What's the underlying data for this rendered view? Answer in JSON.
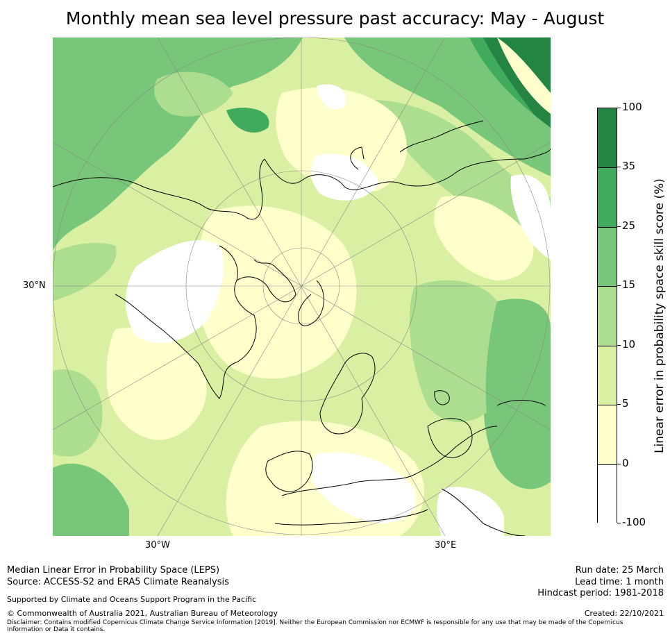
{
  "title": "Monthly mean sea level pressure past accuracy: May - August",
  "map": {
    "projection": "north polar stereographic",
    "lat_label": "30°N",
    "lon_labels": {
      "west": "30°W",
      "east": "30°E"
    }
  },
  "colorbar": {
    "label": "Linear error in probability space skill score (%)",
    "ticks": [
      "100",
      "35",
      "25",
      "15",
      "10",
      "5",
      "0",
      "-100"
    ],
    "bins": [
      {
        "from": "35",
        "to": "100",
        "color": "#238443"
      },
      {
        "from": "25",
        "to": "35",
        "color": "#41ab5d"
      },
      {
        "from": "15",
        "to": "25",
        "color": "#78c679"
      },
      {
        "from": "10",
        "to": "15",
        "color": "#addd8e"
      },
      {
        "from": "5",
        "to": "10",
        "color": "#d9f0a3"
      },
      {
        "from": "0",
        "to": "5",
        "color": "#ffffcc"
      },
      {
        "from": "-100",
        "to": "0",
        "color": "#ffffff"
      }
    ]
  },
  "footer": {
    "line1": "Median Linear Error in Probability Space (LEPS)",
    "line2": "Source: ACCESS-S2 and ERA5 Climate Reanalysis",
    "support": "Supported by Climate and Oceans Support Program in the Pacific",
    "copyright": "© Commonwealth of Australia 2021, Australian Bureau of Meteorology",
    "disclaimer_1": "Disclaimer: Contains modified Copernicus Climate Change Service Information [2019]. Neither the European Commission nor ECMWF is responsible for any use that may be made of the Copernicus",
    "disclaimer_2": "Information or Data it contains.",
    "run_date": "Run date: 25 March",
    "lead_time": "Lead time: 1 month",
    "hindcast": "Hindcast period: 1981-2018",
    "created": "Created: 22/10/2021"
  }
}
